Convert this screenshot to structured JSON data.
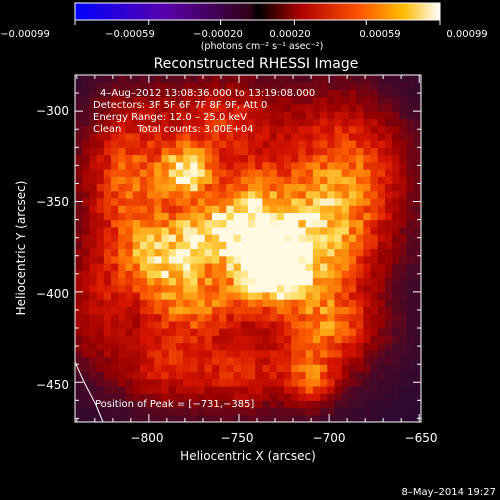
{
  "chart_data": {
    "type": "heatmap",
    "title": "Reconstructed RHESSI Image",
    "xlabel": "Heliocentric X (arcsec)",
    "ylabel": "Heliocentric Y (arcsec)",
    "xlim": [
      -841,
      -649
    ],
    "ylim": [
      -472,
      -280
    ],
    "x_ticks": [
      -800,
      -750,
      -700,
      -650
    ],
    "y_ticks": [
      -300,
      -350,
      -400,
      -450
    ],
    "x_tick_labels": [
      "−800",
      "−750",
      "−700",
      "−650"
    ],
    "y_tick_labels": [
      "−300",
      "−350",
      "−400",
      "−450"
    ],
    "colorbar": {
      "range": [
        -0.00099,
        0.00099
      ],
      "ticks": [
        -0.00099,
        -0.00059,
        -0.0002,
        0.0002,
        0.00059,
        0.00099
      ],
      "tick_labels": [
        "−0.00099",
        "−0.00059",
        "−0.00020",
        "0.00020",
        "0.00059",
        "0.00099"
      ],
      "unit_label": "(photons cm⁻² s⁻¹ asec⁻²)"
    },
    "sources": [
      {
        "x": -733,
        "y": -386,
        "amp": 1.0,
        "sx": 13,
        "sy": 13
      },
      {
        "x": -779,
        "y": -333,
        "amp": 0.75,
        "sx": 10,
        "sy": 10
      },
      {
        "x": -764,
        "y": -367,
        "amp": 0.55,
        "sx": 18,
        "sy": 12
      },
      {
        "x": -742,
        "y": -352,
        "amp": 0.45,
        "sx": 14,
        "sy": 16
      },
      {
        "x": -795,
        "y": -382,
        "amp": 0.5,
        "sx": 16,
        "sy": 14
      },
      {
        "x": -812,
        "y": -337,
        "amp": 0.45,
        "sx": 16,
        "sy": 28
      },
      {
        "x": -775,
        "y": -405,
        "amp": 0.45,
        "sx": 18,
        "sy": 14
      },
      {
        "x": -700,
        "y": -420,
        "amp": 0.45,
        "sx": 18,
        "sy": 16
      },
      {
        "x": -708,
        "y": -375,
        "amp": 0.5,
        "sx": 20,
        "sy": 22
      },
      {
        "x": -690,
        "y": -335,
        "amp": 0.5,
        "sx": 22,
        "sy": 28
      },
      {
        "x": -710,
        "y": -448,
        "amp": 0.4,
        "sx": 10,
        "sy": 10
      },
      {
        "x": -795,
        "y": -440,
        "amp": 0.3,
        "sx": 16,
        "sy": 14
      },
      {
        "x": -750,
        "y": -445,
        "amp": 0.3,
        "sx": 20,
        "sy": 12
      },
      {
        "x": -830,
        "y": -410,
        "amp": 0.25,
        "sx": 12,
        "sy": 22
      },
      {
        "x": -760,
        "y": -305,
        "amp": 0.3,
        "sx": 22,
        "sy": 14
      }
    ],
    "peak": [
      -731,
      -385
    ]
  },
  "annotations": {
    "line1": "4–Aug–2012 13:08:36.000 to 13:19:08.000",
    "line2": "Detectors: 3F 5F 6F 7F 8F 9F, Att 0",
    "line3": "Energy Range: 12.0 – 25.0 keV",
    "line4": "Clean     Total counts: 3.00E+04",
    "peak_text": "Position of Peak = [−731,−385]"
  },
  "footer": {
    "date": "8–May–2014 19:27"
  }
}
